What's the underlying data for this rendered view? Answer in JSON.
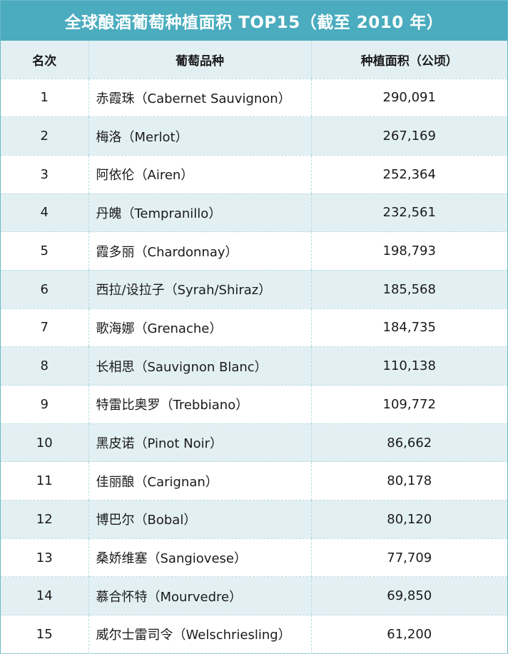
{
  "title": "全球酿酒葡萄种植面积 TOP15（截至 2010 年）",
  "headers": {
    "rank": "名次",
    "variety": "葡萄品种",
    "area": "种植面积（公顷）"
  },
  "rows": [
    {
      "rank": "1",
      "variety": "赤霞珠（Cabernet Sauvignon）",
      "area": "290,091"
    },
    {
      "rank": "2",
      "variety": "梅洛（Merlot）",
      "area": "267,169"
    },
    {
      "rank": "3",
      "variety": "阿依伦（Airen）",
      "area": "252,364"
    },
    {
      "rank": "4",
      "variety": "丹魄（Tempranillo）",
      "area": "232,561"
    },
    {
      "rank": "5",
      "variety": "霞多丽（Chardonnay）",
      "area": "198,793"
    },
    {
      "rank": "6",
      "variety": "西拉/设拉子（Syrah/Shiraz）",
      "area": "185,568"
    },
    {
      "rank": "7",
      "variety": "歌海娜（Grenache）",
      "area": "184,735"
    },
    {
      "rank": "8",
      "variety": "长相思（Sauvignon Blanc）",
      "area": "110,138"
    },
    {
      "rank": "9",
      "variety": "特雷比奥罗（Trebbiano）",
      "area": "109,772"
    },
    {
      "rank": "10",
      "variety": "黑皮诺（Pinot Noir）",
      "area": "86,662"
    },
    {
      "rank": "11",
      "variety": "佳丽酿（Carignan）",
      "area": "80,178"
    },
    {
      "rank": "12",
      "variety": "博巴尔（Bobal）",
      "area": "80,120"
    },
    {
      "rank": "13",
      "variety": "桑娇维塞（Sangiovese）",
      "area": "77,709"
    },
    {
      "rank": "14",
      "variety": "慕合怀特（Mourvedre）",
      "area": "69,850"
    },
    {
      "rank": "15",
      "variety": "威尔士雷司令（Welschriesling）",
      "area": "61,200"
    }
  ],
  "colors": {
    "header_bar": "#4aacbe",
    "stripe": "#e3f0f3",
    "border": "#b9dbe3"
  }
}
